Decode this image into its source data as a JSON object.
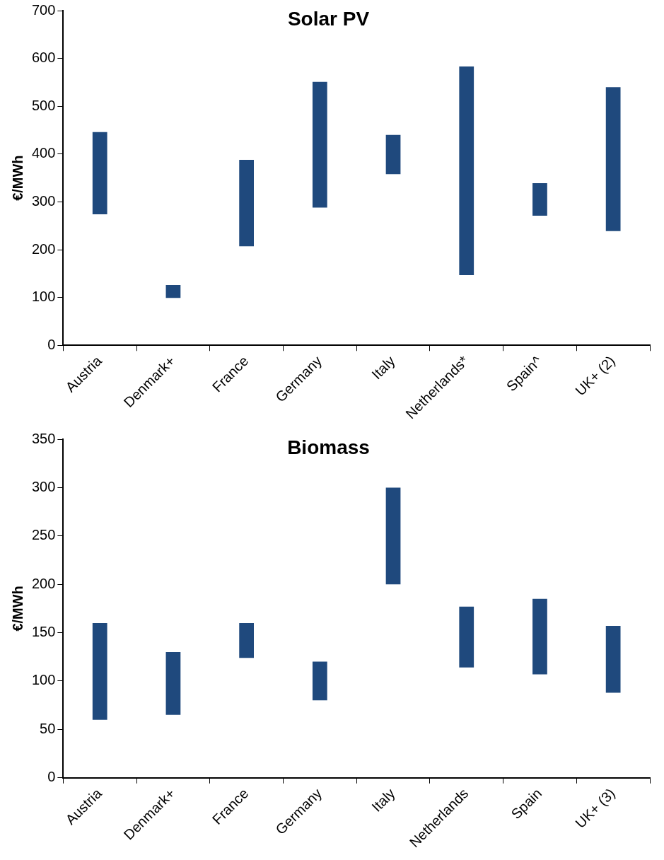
{
  "chart_data": [
    {
      "type": "bar",
      "title": "Solar PV",
      "ylabel": "€/MWh",
      "categories": [
        "Austria",
        "Denmark+",
        "France",
        "Germany",
        "Italy",
        "Netherlands*",
        "Spain^",
        "UK+ (2)"
      ],
      "base": [
        274,
        99,
        207,
        288,
        358,
        147,
        271,
        239
      ],
      "values": [
        172,
        27,
        181,
        263,
        82,
        436,
        68,
        301
      ],
      "color": "#1f497d",
      "ylim": [
        0,
        700
      ],
      "yticks": [
        0,
        100,
        200,
        300,
        400,
        500,
        600,
        700
      ],
      "grid": false,
      "legend": false
    },
    {
      "type": "bar",
      "title": "Biomass",
      "ylabel": "€/MWh",
      "categories": [
        "Austria",
        "Denmark+",
        "France",
        "Germany",
        "Italy",
        "Netherlands",
        "Spain",
        "UK+ (3)"
      ],
      "base": [
        60,
        65,
        124,
        80,
        200,
        114,
        107,
        88
      ],
      "values": [
        100,
        65,
        36,
        40,
        100,
        63,
        78,
        69
      ],
      "color": "#1f497d",
      "ylim": [
        0,
        350
      ],
      "yticks": [
        0,
        50,
        100,
        150,
        200,
        250,
        300,
        350
      ],
      "grid": false,
      "legend": false
    }
  ]
}
